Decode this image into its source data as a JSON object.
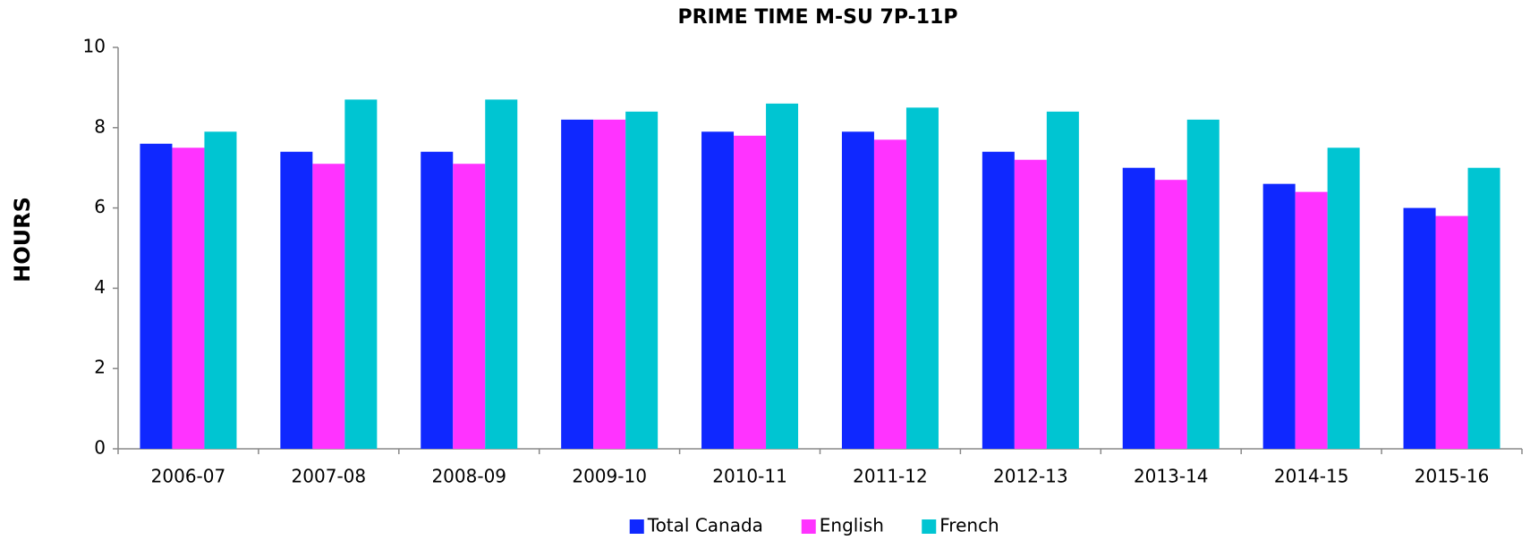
{
  "chart_data": {
    "type": "bar",
    "title": "PRIME TIME M-SU 7P-11P",
    "ylabel": "HOURS",
    "categories": [
      "2006-07",
      "2007-08",
      "2008-09",
      "2009-10",
      "2010-11",
      "2011-12",
      "2012-13",
      "2013-14",
      "2014-15",
      "2015-16"
    ],
    "series": [
      {
        "name": "Total Canada",
        "color": "#0f28ff",
        "values": [
          7.6,
          7.4,
          7.4,
          8.2,
          7.9,
          7.9,
          7.4,
          7.0,
          6.6,
          6.0
        ]
      },
      {
        "name": "English",
        "color": "#ff33ff",
        "values": [
          7.5,
          7.1,
          7.1,
          8.2,
          7.8,
          7.7,
          7.2,
          6.7,
          6.4,
          5.8
        ]
      },
      {
        "name": "French",
        "color": "#00c5d2",
        "values": [
          7.9,
          8.7,
          8.7,
          8.4,
          8.6,
          8.5,
          8.4,
          8.2,
          7.5,
          7.0
        ]
      }
    ],
    "ylim": [
      0,
      10
    ],
    "yticks": [
      0,
      2,
      4,
      6,
      8,
      10
    ],
    "grid": false,
    "legend": "bottom"
  }
}
